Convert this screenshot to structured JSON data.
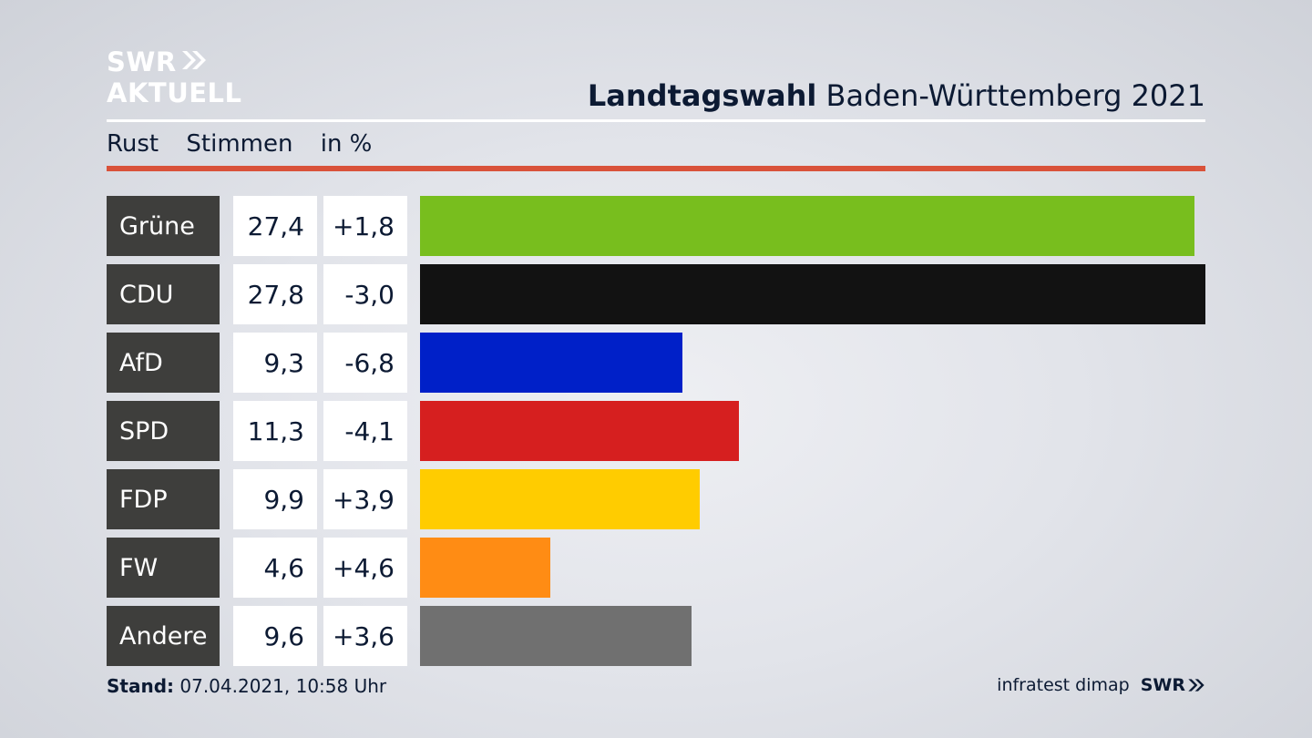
{
  "logo": {
    "line1": "SWR",
    "line2": "AKTUELL"
  },
  "header": {
    "title_bold": "Landtagswahl",
    "title_rest": " Baden-Württemberg 2021"
  },
  "subheader": {
    "place": "Rust",
    "measure": "Stimmen",
    "unit": "in %"
  },
  "footer": {
    "stand_label": "Stand:",
    "stand_value": " 07.04.2021, 10:58 Uhr",
    "source": "infratest dimap",
    "brand": "SWR"
  },
  "chart_data": {
    "type": "bar",
    "orientation": "horizontal",
    "categories": [
      "Grüne",
      "CDU",
      "AfD",
      "SPD",
      "FDP",
      "FW",
      "Andere"
    ],
    "values": [
      27.4,
      27.8,
      9.3,
      11.3,
      9.9,
      4.6,
      9.6
    ],
    "value_labels": [
      "27,4",
      "27,8",
      "9,3",
      "11,3",
      "9,9",
      "4,6",
      "9,6"
    ],
    "diffs": [
      1.8,
      -3.0,
      -6.8,
      -4.1,
      3.9,
      4.6,
      3.6
    ],
    "diff_labels": [
      "+1,8",
      "-3,0",
      "-6,8",
      "-4,1",
      "+3,9",
      "+4,6",
      "+3,6"
    ],
    "colors": [
      "#78be1e",
      "#121212",
      "#0020c8",
      "#d61f1f",
      "#ffcc00",
      "#ff8c14",
      "#707070"
    ],
    "xlim": [
      0,
      27.8
    ],
    "grid": false
  }
}
